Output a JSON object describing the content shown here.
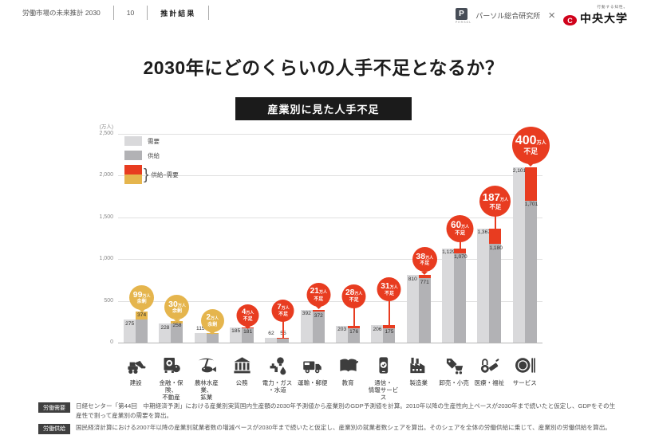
{
  "header": {
    "doc_title": "労働市場の未来推計 2030",
    "page_number": "10",
    "section": "推計結果",
    "persol_mark": "P",
    "persol_sub": "PERSOL",
    "persol_name": "パーソル総合研究所",
    "x_symbol": "×",
    "chuo_tagline": "行動する知性。",
    "chuo_mark": "C",
    "chuo_name": "中央大学"
  },
  "title": "2030年にどのくらいの人手不足となるか？",
  "subtitle_badge": "産業別に見た人手不足",
  "chart_data": {
    "type": "bar",
    "title": "産業別に見た人手不足",
    "unit_label": "(万人)",
    "ylim": [
      0,
      2500
    ],
    "ytick_step": 500,
    "yticks": [
      "2,500",
      "2,000",
      "1,500",
      "1,000",
      "500",
      "0"
    ],
    "grid": true,
    "legend_position": "top-left",
    "legend": [
      {
        "label": "需要",
        "color": "#d9d9db"
      },
      {
        "label": "供給",
        "color": "#b2b2b5"
      },
      {
        "label": "供給−需要",
        "colors": [
          "#e83c20",
          "#e5b54d"
        ]
      }
    ],
    "categories": [
      "建設",
      "金融・保険、\n不動産",
      "農林水産業、\n鉱業",
      "公務",
      "電力・ガス\n・水道",
      "運輸・郵便",
      "教育",
      "通信・\n情報サービス",
      "製造業",
      "卸売・小売",
      "医療・福祉",
      "サービス"
    ],
    "category_icons": [
      "excavator-icon",
      "safe-icon",
      "pickaxe-fish-icon",
      "government-building-icon",
      "utilities-icon",
      "truck-icon",
      "book-icon",
      "smartphone-icon",
      "factory-icon",
      "retail-icon",
      "medical-icon",
      "restaurant-icon"
    ],
    "series": [
      {
        "name": "需要",
        "values": [
          275,
          228,
          115,
          185,
          62,
          392,
          203,
          206,
          810,
          1129,
          1367,
          2101
        ]
      },
      {
        "name": "供給",
        "values": [
          374,
          258,
          117,
          181,
          55,
          372,
          176,
          175,
          771,
          1070,
          1180,
          1701
        ]
      }
    ],
    "value_labels": {
      "demand": [
        "275",
        "228",
        "115",
        "185",
        "62",
        "392",
        "203",
        "206",
        "810",
        "1,129",
        "1,367",
        "2,101"
      ],
      "supply": [
        "374",
        "258",
        "117",
        "181",
        "55",
        "372",
        "176",
        "175",
        "771",
        "1,070",
        "1,180",
        "1,701"
      ]
    },
    "badges": [
      {
        "value": "99",
        "unit": "万人",
        "status": "余剰",
        "type": "surplus"
      },
      {
        "value": "30",
        "unit": "万人",
        "status": "余剰",
        "type": "surplus"
      },
      {
        "value": "2",
        "unit": "万人",
        "status": "余剰",
        "type": "surplus"
      },
      {
        "value": "4",
        "unit": "万人",
        "status": "不足",
        "type": "shortage"
      },
      {
        "value": "7",
        "unit": "万人",
        "status": "不足",
        "type": "shortage"
      },
      {
        "value": "21",
        "unit": "万人",
        "status": "不足",
        "type": "shortage"
      },
      {
        "value": "28",
        "unit": "万人",
        "status": "不足",
        "type": "shortage"
      },
      {
        "value": "31",
        "unit": "万人",
        "status": "不足",
        "type": "shortage"
      },
      {
        "value": "38",
        "unit": "万人",
        "status": "不足",
        "type": "shortage"
      },
      {
        "value": "60",
        "unit": "万人",
        "status": "不足",
        "type": "shortage"
      },
      {
        "value": "187",
        "unit": "万人",
        "status": "不足",
        "type": "shortage"
      },
      {
        "value": "400",
        "unit": "万人",
        "status": "不足",
        "type": "shortage"
      }
    ],
    "colors": {
      "demand": "#d9d9db",
      "supply": "#b2b2b5",
      "shortage": "#e83c20",
      "surplus": "#e5b54d"
    }
  },
  "footnotes": [
    {
      "badge": "労働需要",
      "text": "日経センター「第44回　中期経済予測」における産業別実質国内生産額の2030年予測値から産業別のGDP予測値を計算。2010年以降の生産性向上ペースが2030年まで続いたと仮定し、GDPをその生産性で割って産業別の需要を算出。"
    },
    {
      "badge": "労働供給",
      "text": "国民経済計算における2007年以降の産業別就業者数の増減ペースが2030年まで続いたと仮定し、産業別の就業者数シェアを算出。そのシェアを全体の労働供給に乗じて、産業別の労働供給を算出。"
    }
  ]
}
